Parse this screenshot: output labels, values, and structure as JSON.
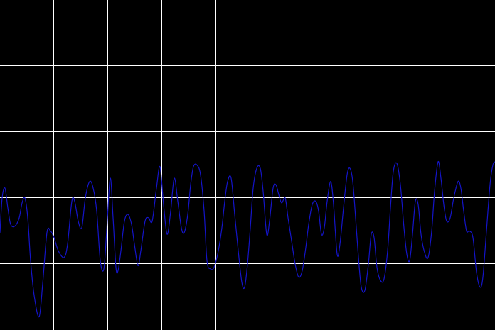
{
  "chart_data": {
    "type": "line",
    "title": "",
    "xlabel": "",
    "ylabel": "",
    "grid": true,
    "xlim": [
      0,
      696
    ],
    "ylim": [
      0,
      10
    ],
    "x_grid_divisions": 9.16,
    "y_grid_divisions": 10,
    "colors": {
      "background": "#000000",
      "grid": "#ffffff",
      "trace": "#1414c8"
    },
    "series": [
      {
        "values": [
          [
            0,
            2.95
          ],
          [
            3,
            4.0
          ],
          [
            7,
            4.3
          ],
          [
            11,
            3.7
          ],
          [
            15,
            3.2
          ],
          [
            21,
            3.15
          ],
          [
            27,
            3.4
          ],
          [
            31,
            3.85
          ],
          [
            35,
            4.0
          ],
          [
            39,
            3.4
          ],
          [
            43,
            2.1
          ],
          [
            48,
            1.05
          ],
          [
            55,
            0.4
          ],
          [
            60,
            1.4
          ],
          [
            66,
            2.95
          ],
          [
            71,
            3.0
          ],
          [
            76,
            2.8
          ],
          [
            82,
            2.4
          ],
          [
            90,
            2.2
          ],
          [
            95,
            2.6
          ],
          [
            101,
            3.9
          ],
          [
            105,
            3.9
          ],
          [
            110,
            3.3
          ],
          [
            115,
            3.1
          ],
          [
            120,
            4.0
          ],
          [
            126,
            4.5
          ],
          [
            131,
            4.3
          ],
          [
            136,
            3.6
          ],
          [
            141,
            2.1
          ],
          [
            146,
            1.85
          ],
          [
            150,
            3.0
          ],
          [
            155,
            4.6
          ],
          [
            159,
            3.4
          ],
          [
            163,
            1.9
          ],
          [
            166,
            1.8
          ],
          [
            170,
            2.4
          ],
          [
            175,
            3.3
          ],
          [
            180,
            3.5
          ],
          [
            185,
            3.2
          ],
          [
            189,
            2.6
          ],
          [
            194,
            1.95
          ],
          [
            198,
            2.4
          ],
          [
            204,
            3.3
          ],
          [
            209,
            3.4
          ],
          [
            214,
            3.3
          ],
          [
            220,
            4.3
          ],
          [
            225,
            4.95
          ],
          [
            230,
            3.8
          ],
          [
            235,
            2.9
          ],
          [
            240,
            3.6
          ],
          [
            245,
            4.6
          ],
          [
            250,
            3.9
          ],
          [
            255,
            3.1
          ],
          [
            259,
            2.95
          ],
          [
            264,
            3.5
          ],
          [
            268,
            4.4
          ],
          [
            272,
            4.95
          ],
          [
            277,
            5.0
          ],
          [
            282,
            4.7
          ],
          [
            287,
            3.6
          ],
          [
            291,
            2.1
          ],
          [
            296,
            1.85
          ],
          [
            301,
            1.9
          ],
          [
            307,
            2.4
          ],
          [
            312,
            3.1
          ],
          [
            316,
            3.9
          ],
          [
            320,
            4.5
          ],
          [
            325,
            4.6
          ],
          [
            330,
            3.5
          ],
          [
            335,
            2.4
          ],
          [
            340,
            1.45
          ],
          [
            344,
            1.3
          ],
          [
            348,
            2.0
          ],
          [
            352,
            3.1
          ],
          [
            356,
            4.3
          ],
          [
            361,
            4.9
          ],
          [
            366,
            4.9
          ],
          [
            370,
            4.2
          ],
          [
            375,
            2.9
          ],
          [
            379,
            3.3
          ],
          [
            384,
            4.3
          ],
          [
            388,
            4.4
          ],
          [
            392,
            4.1
          ],
          [
            396,
            3.85
          ],
          [
            401,
            4.0
          ],
          [
            405,
            3.4
          ],
          [
            410,
            2.7
          ],
          [
            415,
            2.0
          ],
          [
            420,
            1.6
          ],
          [
            425,
            1.8
          ],
          [
            430,
            2.5
          ],
          [
            434,
            3.2
          ],
          [
            439,
            3.8
          ],
          [
            444,
            3.9
          ],
          [
            448,
            3.6
          ],
          [
            452,
            2.9
          ],
          [
            456,
            3.1
          ],
          [
            460,
            3.9
          ],
          [
            465,
            4.5
          ],
          [
            469,
            3.8
          ],
          [
            474,
            2.3
          ],
          [
            478,
            2.6
          ],
          [
            483,
            3.7
          ],
          [
            488,
            4.7
          ],
          [
            492,
            4.9
          ],
          [
            496,
            4.5
          ],
          [
            500,
            3.4
          ],
          [
            504,
            2.2
          ],
          [
            508,
            1.3
          ],
          [
            513,
            1.2
          ],
          [
            518,
            2.0
          ],
          [
            522,
            2.9
          ],
          [
            526,
            2.8
          ],
          [
            530,
            1.9
          ],
          [
            535,
            1.5
          ],
          [
            540,
            1.55
          ],
          [
            545,
            2.4
          ],
          [
            549,
            3.7
          ],
          [
            553,
            4.8
          ],
          [
            558,
            5.05
          ],
          [
            563,
            4.4
          ],
          [
            568,
            3.1
          ],
          [
            572,
            2.3
          ],
          [
            576,
            2.1
          ],
          [
            580,
            2.9
          ],
          [
            584,
            3.9
          ],
          [
            588,
            3.8
          ],
          [
            592,
            2.9
          ],
          [
            597,
            2.35
          ],
          [
            602,
            2.2
          ],
          [
            607,
            3.0
          ],
          [
            611,
            4.2
          ],
          [
            616,
            5.1
          ],
          [
            620,
            4.6
          ],
          [
            624,
            3.8
          ],
          [
            628,
            3.3
          ],
          [
            633,
            3.4
          ],
          [
            638,
            4.0
          ],
          [
            644,
            4.5
          ],
          [
            648,
            4.3
          ],
          [
            652,
            3.6
          ],
          [
            656,
            3.0
          ],
          [
            660,
            3.0
          ],
          [
            665,
            2.8
          ],
          [
            670,
            1.75
          ],
          [
            675,
            1.3
          ],
          [
            679,
            1.6
          ],
          [
            684,
            3.0
          ],
          [
            689,
            4.4
          ],
          [
            693,
            5.0
          ],
          [
            696,
            5.1
          ]
        ]
      }
    ]
  }
}
